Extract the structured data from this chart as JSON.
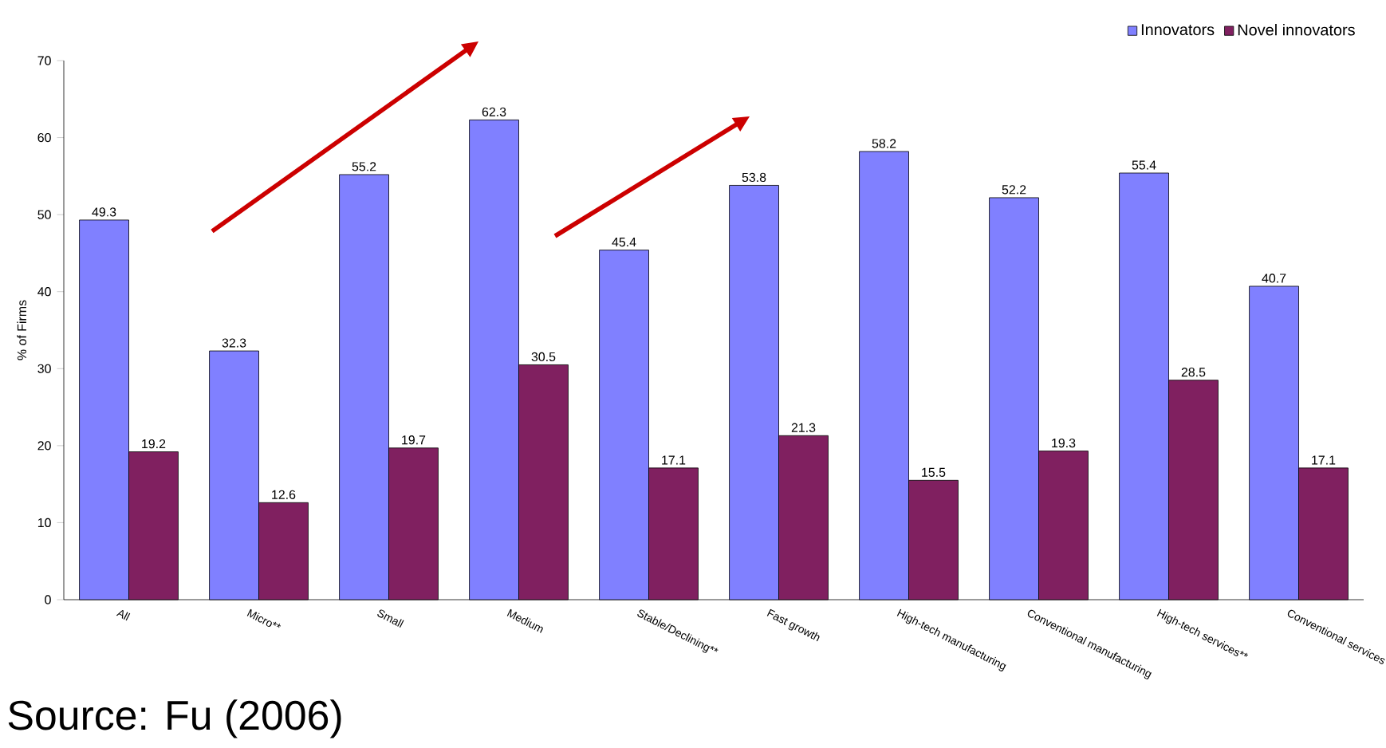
{
  "chart_data": {
    "type": "bar",
    "ylabel": "% of Firms",
    "categories": [
      "All",
      "Micro**",
      "Small",
      "Medium",
      "Stable/Declining**",
      "Fast growth",
      "High-tech manufacturing",
      "Conventional manufacturing",
      "High-tech services**",
      "Conventional services"
    ],
    "series": [
      {
        "name": "Innovators",
        "color": "#8080ff",
        "values": [
          49.3,
          32.3,
          55.2,
          62.3,
          45.4,
          53.8,
          58.2,
          52.2,
          55.4,
          40.7
        ]
      },
      {
        "name": "Novel innovators",
        "color": "#802060",
        "values": [
          19.2,
          12.6,
          19.7,
          30.5,
          17.1,
          21.3,
          15.5,
          19.3,
          28.5,
          17.1
        ]
      }
    ],
    "ylim": [
      0,
      70
    ],
    "yticks": [
      0,
      10,
      20,
      30,
      40,
      50,
      60,
      70
    ],
    "data_labels": true,
    "legend": "top right",
    "grid": false,
    "annotations": [
      "Source: Fu (2006)"
    ]
  }
}
